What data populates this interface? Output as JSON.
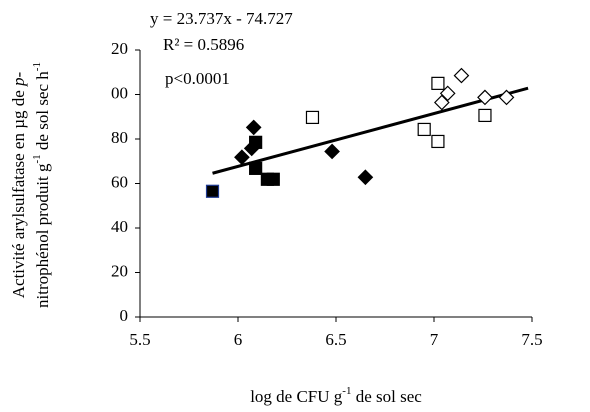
{
  "chart_data": {
    "type": "scatter",
    "annotations": [
      "y = 23.737x - 74.727",
      "R² = 0.5896",
      "p<0.0001"
    ],
    "ylabel": [
      "Activité arylsulfatase en µg de ",
      "p",
      "-",
      "nitrophénol produit g",
      "-1",
      " de sol sec h",
      "-1"
    ],
    "xlabel": [
      "log de CFU g",
      "-1",
      " de sol sec"
    ],
    "xlim": [
      5.5,
      7.5
    ],
    "xticks": [
      5.5,
      6,
      6.5,
      7,
      7.5
    ],
    "ylim": [
      0,
      120
    ],
    "yticks": [
      0,
      20,
      40,
      60,
      80,
      {
        "value": 100,
        "label": "00"
      },
      {
        "value": 120,
        "label": "20"
      }
    ],
    "series": [
      {
        "marker": "diamond",
        "color": "#000000",
        "edge": "#000000",
        "x": [
          6.02,
          6.07,
          6.08,
          6.48,
          6.65
        ],
        "values": [
          71.8,
          75.8,
          85.2,
          74.4,
          62.8
        ]
      },
      {
        "marker": "square",
        "color": "#000000",
        "edge": "#000000",
        "x": [
          6.09,
          6.09,
          6.15,
          6.18
        ],
        "values": [
          78.5,
          66.8,
          61.9,
          61.9
        ]
      },
      {
        "marker": "square",
        "color": "#000000",
        "edge": "#1f3a93",
        "x": [
          5.87
        ],
        "values": [
          56.5
        ]
      },
      {
        "marker": "square",
        "color": "#ffffff",
        "edge": "#000000",
        "x": [
          6.38,
          6.95,
          7.02,
          7.02,
          7.26
        ],
        "values": [
          89.7,
          84.3,
          105,
          78.9,
          90.6
        ]
      },
      {
        "marker": "diamond",
        "color": "#ffffff",
        "edge": "#000000",
        "x": [
          7.04,
          7.07,
          7.14,
          7.26,
          7.37
        ],
        "values": [
          96.4,
          100.5,
          108.5,
          98.7,
          98.7
        ]
      }
    ],
    "trendline": {
      "slope": 23.737,
      "intercept": -74.727,
      "x": [
        5.87,
        7.48
      ]
    }
  }
}
